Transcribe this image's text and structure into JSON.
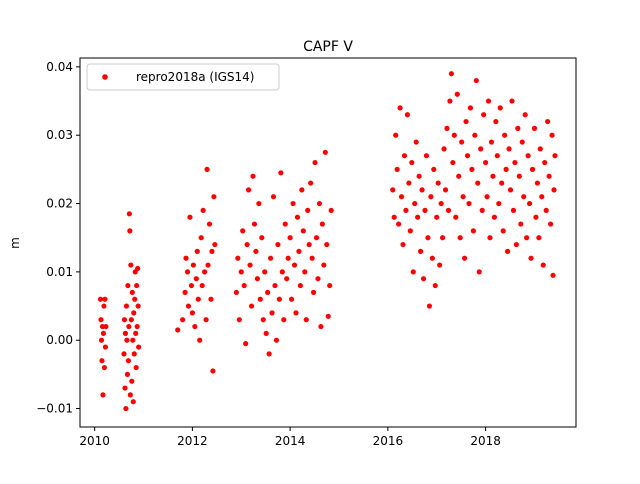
{
  "chart_data": {
    "type": "scatter",
    "title": "CAPF V",
    "xlabel": "",
    "ylabel": "m",
    "xlim": [
      2009.7,
      2019.85
    ],
    "ylim": [
      -0.0127,
      0.0413
    ],
    "xticks": [
      2010,
      2012,
      2014,
      2016,
      2018
    ],
    "xtick_labels": [
      "2010",
      "2012",
      "2014",
      "2016",
      "2018"
    ],
    "yticks": [
      -0.01,
      0.0,
      0.01,
      0.02,
      0.03,
      0.04
    ],
    "ytick_labels": [
      "−0.01",
      "0.00",
      "0.01",
      "0.02",
      "0.03",
      "0.04"
    ],
    "grid": false,
    "legend": {
      "position": "top-left",
      "entries": [
        "repro2018a (IGS14)"
      ]
    },
    "series": [
      {
        "name": "repro2018a (IGS14)",
        "color": "#ff0000",
        "marker": "circle",
        "points": [
          [
            2010.12,
            0.006
          ],
          [
            2010.13,
            0.003
          ],
          [
            2010.14,
            0.0
          ],
          [
            2010.15,
            -0.003
          ],
          [
            2010.16,
            0.002
          ],
          [
            2010.17,
            -0.008
          ],
          [
            2010.18,
            0.001
          ],
          [
            2010.19,
            0.005
          ],
          [
            2010.2,
            -0.004
          ],
          [
            2010.21,
            0.006
          ],
          [
            2010.22,
            -0.001
          ],
          [
            2010.23,
            0.002
          ],
          [
            2010.6,
            -0.002
          ],
          [
            2010.61,
            0.003
          ],
          [
            2010.62,
            -0.007
          ],
          [
            2010.63,
            0.001
          ],
          [
            2010.64,
            -0.01
          ],
          [
            2010.65,
            0.005
          ],
          [
            2010.66,
            0.0
          ],
          [
            2010.67,
            -0.005
          ],
          [
            2010.68,
            0.008
          ],
          [
            2010.69,
            -0.003
          ],
          [
            2010.7,
            0.002
          ],
          [
            2010.71,
            0.0185
          ],
          [
            2010.72,
            0.016
          ],
          [
            2010.73,
            -0.008
          ],
          [
            2010.74,
            0.011
          ],
          [
            2010.75,
            0.003
          ],
          [
            2010.76,
            -0.006
          ],
          [
            2010.77,
            0.007
          ],
          [
            2010.78,
            0.0
          ],
          [
            2010.79,
            -0.009
          ],
          [
            2010.8,
            0.004
          ],
          [
            2010.81,
            -0.002
          ],
          [
            2010.82,
            0.006
          ],
          [
            2010.83,
            0.01
          ],
          [
            2010.84,
            0.001
          ],
          [
            2010.85,
            -0.004
          ],
          [
            2010.86,
            0.008
          ],
          [
            2010.87,
            0.002
          ],
          [
            2010.88,
            0.0105
          ],
          [
            2010.89,
            0.005
          ],
          [
            2010.9,
            -0.001
          ],
          [
            2011.7,
            0.0015
          ],
          [
            2011.8,
            0.003
          ],
          [
            2011.85,
            0.007
          ],
          [
            2011.87,
            0.012
          ],
          [
            2011.9,
            0.01
          ],
          [
            2011.92,
            0.005
          ],
          [
            2011.95,
            0.018
          ],
          [
            2011.98,
            0.008
          ],
          [
            2012.0,
            0.004
          ],
          [
            2012.02,
            0.011
          ],
          [
            2012.05,
            0.002
          ],
          [
            2012.08,
            0.009
          ],
          [
            2012.1,
            0.013
          ],
          [
            2012.12,
            0.006
          ],
          [
            2012.15,
            0.0
          ],
          [
            2012.18,
            0.015
          ],
          [
            2012.2,
            0.008
          ],
          [
            2012.22,
            0.019
          ],
          [
            2012.25,
            0.01
          ],
          [
            2012.28,
            0.003
          ],
          [
            2012.3,
            0.025
          ],
          [
            2012.32,
            0.011
          ],
          [
            2012.35,
            0.017
          ],
          [
            2012.38,
            0.006
          ],
          [
            2012.4,
            0.013
          ],
          [
            2012.42,
            -0.0045
          ],
          [
            2012.44,
            0.021
          ],
          [
            2012.46,
            0.014
          ],
          [
            2012.9,
            0.007
          ],
          [
            2012.93,
            0.012
          ],
          [
            2012.96,
            0.003
          ],
          [
            2013.0,
            0.01
          ],
          [
            2013.03,
            0.016
          ],
          [
            2013.06,
            0.008
          ],
          [
            2013.09,
            -0.0005
          ],
          [
            2013.12,
            0.014
          ],
          [
            2013.15,
            0.022
          ],
          [
            2013.18,
            0.011
          ],
          [
            2013.21,
            0.005
          ],
          [
            2013.24,
            0.024
          ],
          [
            2013.27,
            0.017
          ],
          [
            2013.3,
            0.013
          ],
          [
            2013.33,
            0.009
          ],
          [
            2013.36,
            0.02
          ],
          [
            2013.39,
            0.006
          ],
          [
            2013.42,
            0.015
          ],
          [
            2013.45,
            0.003
          ],
          [
            2013.48,
            0.01
          ],
          [
            2013.51,
            0.001
          ],
          [
            2013.54,
            0.007
          ],
          [
            2013.57,
            -0.002
          ],
          [
            2013.6,
            0.012
          ],
          [
            2013.63,
            0.004
          ],
          [
            2013.66,
            0.021
          ],
          [
            2013.69,
            0.008
          ],
          [
            2013.72,
            0.0
          ],
          [
            2013.75,
            0.014
          ],
          [
            2013.78,
            0.006
          ],
          [
            2013.81,
            0.0245
          ],
          [
            2013.84,
            0.01
          ],
          [
            2013.87,
            0.003
          ],
          [
            2013.9,
            0.017
          ],
          [
            2013.93,
            0.009
          ],
          [
            2013.96,
            0.012
          ],
          [
            2014.0,
            0.015
          ],
          [
            2014.03,
            0.006
          ],
          [
            2014.06,
            0.02
          ],
          [
            2014.09,
            0.011
          ],
          [
            2014.12,
            0.004
          ],
          [
            2014.15,
            0.018
          ],
          [
            2014.18,
            0.013
          ],
          [
            2014.21,
            0.008
          ],
          [
            2014.24,
            0.022
          ],
          [
            2014.27,
            0.016
          ],
          [
            2014.3,
            0.01
          ],
          [
            2014.33,
            0.003
          ],
          [
            2014.36,
            0.019
          ],
          [
            2014.39,
            0.014
          ],
          [
            2014.42,
            0.023
          ],
          [
            2014.45,
            0.012
          ],
          [
            2014.48,
            0.007
          ],
          [
            2014.51,
            0.026
          ],
          [
            2014.54,
            0.015
          ],
          [
            2014.57,
            0.009
          ],
          [
            2014.6,
            0.02
          ],
          [
            2014.63,
            0.002
          ],
          [
            2014.66,
            0.017
          ],
          [
            2014.69,
            0.011
          ],
          [
            2014.72,
            0.0275
          ],
          [
            2014.75,
            0.014
          ],
          [
            2014.78,
            0.0035
          ],
          [
            2014.81,
            0.008
          ],
          [
            2014.84,
            0.019
          ],
          [
            2016.1,
            0.022
          ],
          [
            2016.13,
            0.018
          ],
          [
            2016.16,
            0.03
          ],
          [
            2016.19,
            0.025
          ],
          [
            2016.22,
            0.017
          ],
          [
            2016.25,
            0.034
          ],
          [
            2016.28,
            0.021
          ],
          [
            2016.31,
            0.014
          ],
          [
            2016.34,
            0.027
          ],
          [
            2016.37,
            0.019
          ],
          [
            2016.4,
            0.033
          ],
          [
            2016.43,
            0.023
          ],
          [
            2016.46,
            0.016
          ],
          [
            2016.49,
            0.026
          ],
          [
            2016.52,
            0.01
          ],
          [
            2016.55,
            0.02
          ],
          [
            2016.58,
            0.029
          ],
          [
            2016.61,
            0.018
          ],
          [
            2016.64,
            0.024
          ],
          [
            2016.67,
            0.013
          ],
          [
            2016.7,
            0.022
          ],
          [
            2016.73,
            0.009
          ],
          [
            2016.76,
            0.019
          ],
          [
            2016.79,
            0.027
          ],
          [
            2016.82,
            0.015
          ],
          [
            2016.85,
            0.005
          ],
          [
            2016.88,
            0.021
          ],
          [
            2016.91,
            0.012
          ],
          [
            2016.94,
            0.025
          ],
          [
            2016.97,
            0.008
          ],
          [
            2017.0,
            0.018
          ],
          [
            2017.03,
            0.023
          ],
          [
            2017.06,
            0.011
          ],
          [
            2017.09,
            0.02
          ],
          [
            2017.12,
            0.015
          ],
          [
            2017.15,
            0.028
          ],
          [
            2017.18,
            0.022
          ],
          [
            2017.21,
            0.031
          ],
          [
            2017.24,
            0.019
          ],
          [
            2017.27,
            0.035
          ],
          [
            2017.3,
            0.039
          ],
          [
            2017.33,
            0.026
          ],
          [
            2017.36,
            0.03
          ],
          [
            2017.39,
            0.018
          ],
          [
            2017.42,
            0.036
          ],
          [
            2017.45,
            0.024
          ],
          [
            2017.48,
            0.015
          ],
          [
            2017.51,
            0.029
          ],
          [
            2017.54,
            0.021
          ],
          [
            2017.57,
            0.012
          ],
          [
            2017.6,
            0.032
          ],
          [
            2017.63,
            0.027
          ],
          [
            2017.66,
            0.02
          ],
          [
            2017.69,
            0.034
          ],
          [
            2017.72,
            0.025
          ],
          [
            2017.75,
            0.016
          ],
          [
            2017.78,
            0.03
          ],
          [
            2017.81,
            0.038
          ],
          [
            2017.84,
            0.023
          ],
          [
            2017.87,
            0.01
          ],
          [
            2017.9,
            0.028
          ],
          [
            2017.93,
            0.019
          ],
          [
            2017.96,
            0.033
          ],
          [
            2018.0,
            0.026
          ],
          [
            2018.03,
            0.021
          ],
          [
            2018.06,
            0.035
          ],
          [
            2018.09,
            0.015
          ],
          [
            2018.12,
            0.029
          ],
          [
            2018.15,
            0.024
          ],
          [
            2018.18,
            0.018
          ],
          [
            2018.21,
            0.032
          ],
          [
            2018.24,
            0.027
          ],
          [
            2018.27,
            0.02
          ],
          [
            2018.3,
            0.034
          ],
          [
            2018.33,
            0.023
          ],
          [
            2018.36,
            0.016
          ],
          [
            2018.39,
            0.03
          ],
          [
            2018.42,
            0.025
          ],
          [
            2018.45,
            0.013
          ],
          [
            2018.48,
            0.028
          ],
          [
            2018.51,
            0.022
          ],
          [
            2018.54,
            0.035
          ],
          [
            2018.57,
            0.019
          ],
          [
            2018.6,
            0.026
          ],
          [
            2018.63,
            0.014
          ],
          [
            2018.66,
            0.031
          ],
          [
            2018.69,
            0.024
          ],
          [
            2018.72,
            0.017
          ],
          [
            2018.75,
            0.029
          ],
          [
            2018.78,
            0.021
          ],
          [
            2018.81,
            0.033
          ],
          [
            2018.84,
            0.015
          ],
          [
            2018.87,
            0.027
          ],
          [
            2018.9,
            0.02
          ],
          [
            2018.93,
            0.012
          ],
          [
            2018.96,
            0.025
          ],
          [
            2019.0,
            0.031
          ],
          [
            2019.03,
            0.018
          ],
          [
            2019.06,
            0.023
          ],
          [
            2019.09,
            0.015
          ],
          [
            2019.12,
            0.028
          ],
          [
            2019.15,
            0.021
          ],
          [
            2019.18,
            0.011
          ],
          [
            2019.21,
            0.026
          ],
          [
            2019.24,
            0.019
          ],
          [
            2019.27,
            0.032
          ],
          [
            2019.3,
            0.024
          ],
          [
            2019.33,
            0.017
          ],
          [
            2019.36,
            0.03
          ],
          [
            2019.38,
            0.0095
          ],
          [
            2019.4,
            0.022
          ],
          [
            2019.42,
            0.027
          ]
        ]
      }
    ]
  }
}
